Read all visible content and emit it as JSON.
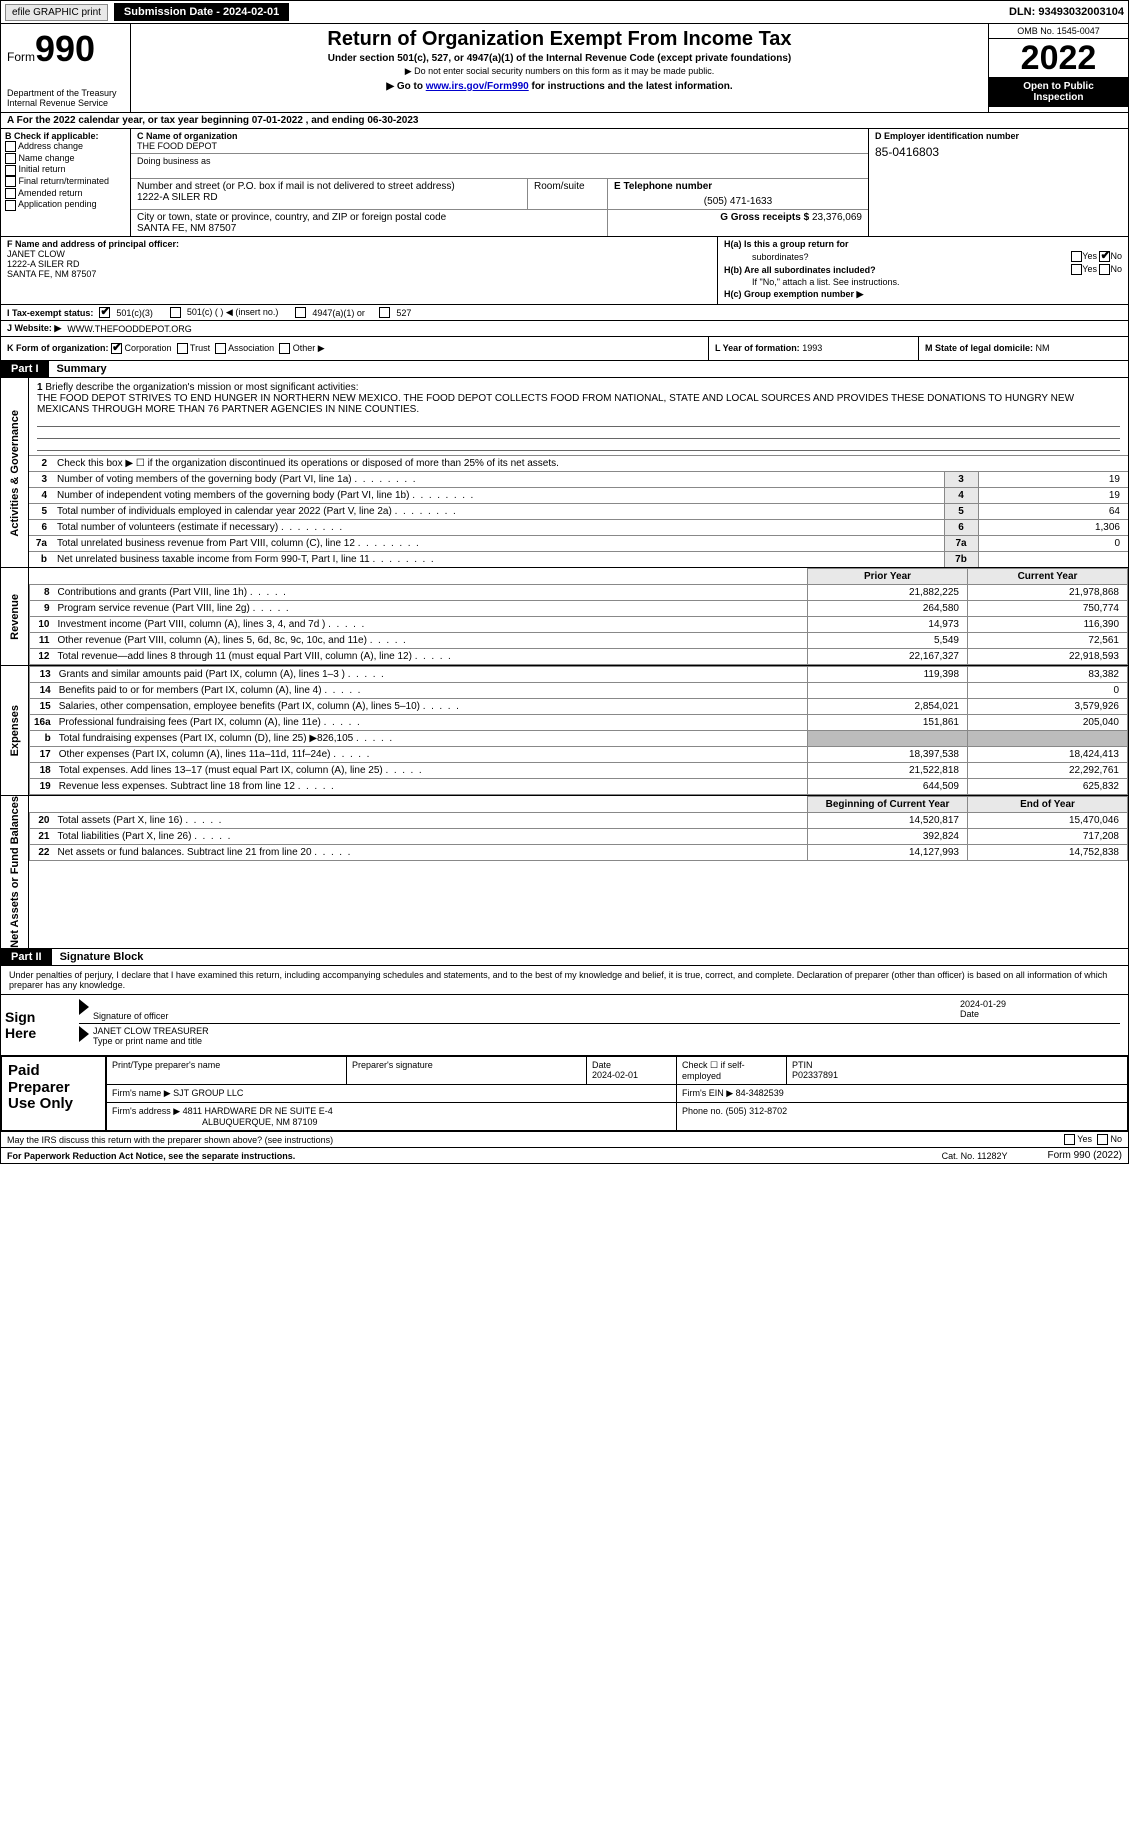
{
  "topbar": {
    "efile": "efile GRAPHIC print",
    "submission": "Submission Date - 2024-02-01",
    "dln": "DLN: 93493032003104"
  },
  "header": {
    "form_label": "Form",
    "form_number": "990",
    "dept": "Department of the Treasury",
    "irs": "Internal Revenue Service",
    "title": "Return of Organization Exempt From Income Tax",
    "subtitle": "Under section 501(c), 527, or 4947(a)(1) of the Internal Revenue Code (except private foundations)",
    "nossn": "▶ Do not enter social security numbers on this form as it may be made public.",
    "goto_pre": "▶ Go to ",
    "goto_link": "www.irs.gov/Form990",
    "goto_post": " for instructions and the latest information.",
    "omb": "OMB No. 1545-0047",
    "year": "2022",
    "open1": "Open to Public",
    "open2": "Inspection"
  },
  "line_a": "A For the 2022 calendar year, or tax year beginning 07-01-2022    , and ending 06-30-2023",
  "section_b": {
    "header": "B Check if applicable:",
    "items": [
      "Address change",
      "Name change",
      "Initial return",
      "Final return/terminated",
      "Amended return",
      "Application pending"
    ]
  },
  "section_c": {
    "label": "C Name of organization",
    "name": "THE FOOD DEPOT",
    "dba_label": "Doing business as",
    "addr_label": "Number and street (or P.O. box if mail is not delivered to street address)",
    "room_label": "Room/suite",
    "addr": "1222-A SILER RD",
    "city_label": "City or town, state or province, country, and ZIP or foreign postal code",
    "city": "SANTA FE, NM  87507"
  },
  "section_d": {
    "label": "D Employer identification number",
    "ein": "85-0416803"
  },
  "section_e": {
    "label": "E Telephone number",
    "phone": "(505) 471-1633"
  },
  "section_g": {
    "label": "G Gross receipts $",
    "amount": "23,376,069"
  },
  "section_f": {
    "label": "F Name and address of principal officer:",
    "name": "JANET CLOW",
    "addr1": "1222-A SILER RD",
    "addr2": "SANTA FE, NM  87507"
  },
  "section_h": {
    "a_label": "H(a)  Is this a group return for",
    "a_label2": "subordinates?",
    "b_label": "H(b)  Are all subordinates included?",
    "ifno": "If \"No,\" attach a list. See instructions.",
    "c_label": "H(c)  Group exemption number ▶",
    "yes": "Yes",
    "no": "No"
  },
  "row_i": {
    "label": "I  Tax-exempt status:",
    "opt1": "501(c)(3)",
    "opt2": "501(c) (   ) ◀ (insert no.)",
    "opt3": "4947(a)(1) or",
    "opt4": "527"
  },
  "row_j": {
    "label": "J  Website: ▶",
    "url": "WWW.THEFOODDEPOT.ORG"
  },
  "row_k": {
    "label": "K Form of organization:",
    "opts": [
      "Corporation",
      "Trust",
      "Association",
      "Other ▶"
    ]
  },
  "row_l": {
    "label": "L Year of formation:",
    "val": "1993"
  },
  "row_m": {
    "label": "M State of legal domicile:",
    "val": "NM"
  },
  "part1": {
    "label": "Part I",
    "title": "Summary"
  },
  "mission": {
    "num": "1",
    "label": "Briefly describe the organization's mission or most significant activities:",
    "text": "THE FOOD DEPOT STRIVES TO END HUNGER IN NORTHERN NEW MEXICO. THE FOOD DEPOT COLLECTS FOOD FROM NATIONAL, STATE AND LOCAL SOURCES AND PROVIDES THESE DONATIONS TO HUNGRY NEW MEXICANS THROUGH MORE THAN 76 PARTNER AGENCIES IN NINE COUNTIES."
  },
  "gov_lines": [
    {
      "n": "2",
      "t": "Check this box ▶ ☐  if the organization discontinued its operations or disposed of more than 25% of its net assets.",
      "box": "",
      "val": ""
    },
    {
      "n": "3",
      "t": "Number of voting members of the governing body (Part VI, line 1a)",
      "box": "3",
      "val": "19"
    },
    {
      "n": "4",
      "t": "Number of independent voting members of the governing body (Part VI, line 1b)",
      "box": "4",
      "val": "19"
    },
    {
      "n": "5",
      "t": "Total number of individuals employed in calendar year 2022 (Part V, line 2a)",
      "box": "5",
      "val": "64"
    },
    {
      "n": "6",
      "t": "Total number of volunteers (estimate if necessary)",
      "box": "6",
      "val": "1,306"
    },
    {
      "n": "7a",
      "t": "Total unrelated business revenue from Part VIII, column (C), line 12",
      "box": "7a",
      "val": "0"
    },
    {
      "n": "b",
      "t": "Net unrelated business taxable income from Form 990-T, Part I, line 11",
      "box": "7b",
      "val": ""
    }
  ],
  "py_header": "Prior Year",
  "cy_header": "Current Year",
  "revenue_lines": [
    {
      "n": "8",
      "t": "Contributions and grants (Part VIII, line 1h)",
      "py": "21,882,225",
      "cy": "21,978,868"
    },
    {
      "n": "9",
      "t": "Program service revenue (Part VIII, line 2g)",
      "py": "264,580",
      "cy": "750,774"
    },
    {
      "n": "10",
      "t": "Investment income (Part VIII, column (A), lines 3, 4, and 7d )",
      "py": "14,973",
      "cy": "116,390"
    },
    {
      "n": "11",
      "t": "Other revenue (Part VIII, column (A), lines 5, 6d, 8c, 9c, 10c, and 11e)",
      "py": "5,549",
      "cy": "72,561"
    },
    {
      "n": "12",
      "t": "Total revenue—add lines 8 through 11 (must equal Part VIII, column (A), line 12)",
      "py": "22,167,327",
      "cy": "22,918,593"
    }
  ],
  "expense_lines": [
    {
      "n": "13",
      "t": "Grants and similar amounts paid (Part IX, column (A), lines 1–3 )",
      "py": "119,398",
      "cy": "83,382"
    },
    {
      "n": "14",
      "t": "Benefits paid to or for members (Part IX, column (A), line 4)",
      "py": "",
      "cy": "0"
    },
    {
      "n": "15",
      "t": "Salaries, other compensation, employee benefits (Part IX, column (A), lines 5–10)",
      "py": "2,854,021",
      "cy": "3,579,926"
    },
    {
      "n": "16a",
      "t": "Professional fundraising fees (Part IX, column (A), line 11e)",
      "py": "151,861",
      "cy": "205,040"
    },
    {
      "n": "b",
      "t": "Total fundraising expenses (Part IX, column (D), line 25) ▶826,105",
      "py": "NOVAL",
      "cy": "NOVAL"
    },
    {
      "n": "17",
      "t": "Other expenses (Part IX, column (A), lines 11a–11d, 11f–24e)",
      "py": "18,397,538",
      "cy": "18,424,413"
    },
    {
      "n": "18",
      "t": "Total expenses. Add lines 13–17 (must equal Part IX, column (A), line 25)",
      "py": "21,522,818",
      "cy": "22,292,761"
    },
    {
      "n": "19",
      "t": "Revenue less expenses. Subtract line 18 from line 12",
      "py": "644,509",
      "cy": "625,832"
    }
  ],
  "na_header1": "Beginning of Current Year",
  "na_header2": "End of Year",
  "netasset_lines": [
    {
      "n": "20",
      "t": "Total assets (Part X, line 16)",
      "py": "14,520,817",
      "cy": "15,470,046"
    },
    {
      "n": "21",
      "t": "Total liabilities (Part X, line 26)",
      "py": "392,824",
      "cy": "717,208"
    },
    {
      "n": "22",
      "t": "Net assets or fund balances. Subtract line 21 from line 20",
      "py": "14,127,993",
      "cy": "14,752,838"
    }
  ],
  "tabs": {
    "gov": "Activities & Governance",
    "rev": "Revenue",
    "exp": "Expenses",
    "na": "Net Assets or Fund Balances"
  },
  "part2": {
    "label": "Part II",
    "title": "Signature Block"
  },
  "perjury": "Under penalties of perjury, I declare that I have examined this return, including accompanying schedules and statements, and to the best of my knowledge and belief, it is true, correct, and complete. Declaration of preparer (other than officer) is based on all information of which preparer has any knowledge.",
  "sign": {
    "here": "Sign Here",
    "sig_officer": "Signature of officer",
    "date_label": "Date",
    "date": "2024-01-29",
    "name": "JANET CLOW  TREASURER",
    "name_label": "Type or print name and title"
  },
  "prep": {
    "title": "Paid Preparer Use Only",
    "h_name": "Print/Type preparer's name",
    "h_sig": "Preparer's signature",
    "h_date": "Date",
    "date": "2024-02-01",
    "h_check": "Check ☐ if self-employed",
    "h_ptin": "PTIN",
    "ptin": "P02337891",
    "firm_name_l": "Firm's name    ▶",
    "firm_name": "SJT GROUP LLC",
    "firm_ein_l": "Firm's EIN ▶",
    "firm_ein": "84-3482539",
    "firm_addr_l": "Firm's address ▶",
    "firm_addr1": "4811 HARDWARE DR NE SUITE E-4",
    "firm_addr2": "ALBUQUERQUE, NM  87109",
    "phone_l": "Phone no.",
    "phone": "(505) 312-8702"
  },
  "discuss": "May the IRS discuss this return with the preparer shown above? (see instructions)",
  "footer": {
    "pra": "For Paperwork Reduction Act Notice, see the separate instructions.",
    "cat": "Cat. No. 11282Y",
    "form": "Form 990 (2022)"
  },
  "colors": {
    "header_black": "#000000",
    "gray_box": "#e8e8e8",
    "shade": "#bcbcbc",
    "link": "#0000cc"
  }
}
